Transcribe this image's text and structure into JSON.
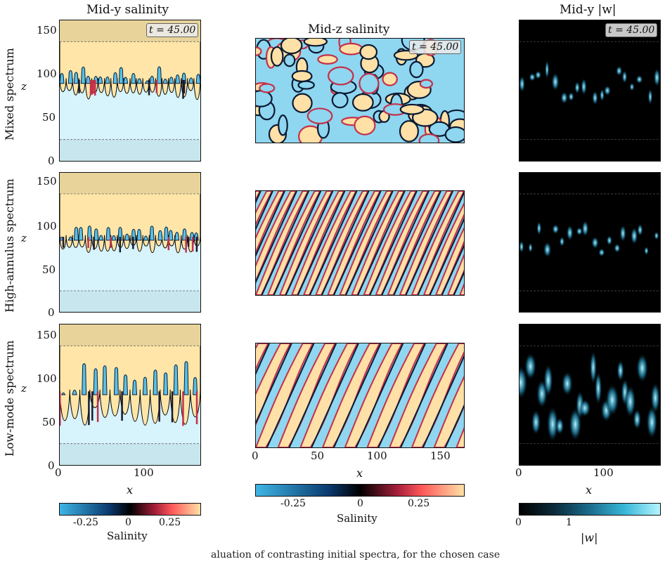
{
  "figure": {
    "caption": "aluation of contrasting initial spectra, for the chosen case"
  },
  "columns": {
    "left_title": "Mid-y salinity",
    "middle_title": "Mid-z salinity",
    "right_title": "Mid-y |w|"
  },
  "rows": [
    {
      "label": "Mixed spectrum"
    },
    {
      "label": "High-annulus spectrum"
    },
    {
      "label": "Low-mode spectrum"
    }
  ],
  "time_badge": "t = 45.00",
  "axes": {
    "z_label": "z",
    "x_label": "x",
    "z_ticks": [
      "0",
      "50",
      "100",
      "150"
    ],
    "x_ticks_side": [
      "0",
      "100"
    ],
    "x_ticks_mid": [
      "0",
      "50",
      "100",
      "150"
    ]
  },
  "colorbars": {
    "salinity_label": "Salinity",
    "salinity_ticks": [
      "-0.25",
      "0",
      "0.25"
    ],
    "w_label": "|w|",
    "w_ticks": [
      "0",
      "1"
    ]
  },
  "colors": {
    "salinity_low": "#3fb6e6",
    "salinity_mid": "#000000",
    "salinity_high": "#ffe0a6",
    "upper_layer": "#ffe6a8",
    "upper_band": "#e8d49a",
    "lower_layer": "#d7f3fb",
    "lower_band": "#c8e6ee",
    "w_dark": "#000000",
    "w_bright": "#b5f5ff"
  },
  "chart_data": [
    {
      "type": "heatmap",
      "title": "Mid-y salinity",
      "xlabel": "x",
      "ylabel": "z",
      "xlim": [
        0,
        160
      ],
      "ylim": [
        0,
        165
      ],
      "rows": [
        "Mixed spectrum",
        "High-annulus spectrum",
        "Low-mode spectrum"
      ],
      "interface_z": [
        {
          "top": 110,
          "bottom": 72
        },
        {
          "top": 100,
          "bottom": 70
        },
        {
          "top": 120,
          "bottom": 45
        }
      ],
      "dashed_lines_z": [
        140,
        25
      ]
    },
    {
      "type": "heatmap",
      "title": "Mid-z salinity",
      "xlabel": "x",
      "xlim": [
        0,
        165
      ],
      "rows": [
        "Mixed spectrum",
        "High-annulus spectrum",
        "Low-mode spectrum"
      ]
    },
    {
      "type": "heatmap",
      "title": "Mid-y |w|",
      "xlabel": "x",
      "xlim": [
        0,
        160
      ],
      "ylim": [
        0,
        165
      ],
      "rows": [
        "Mixed spectrum",
        "High-annulus spectrum",
        "Low-mode spectrum"
      ]
    }
  ]
}
